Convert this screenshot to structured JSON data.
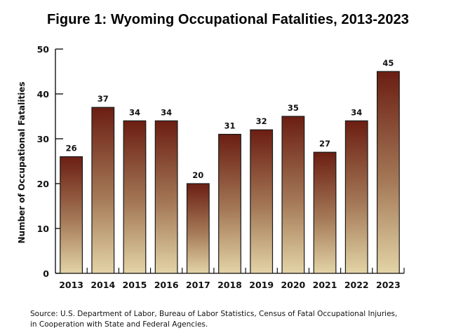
{
  "chart_data": {
    "type": "bar",
    "title": "Figure 1: Wyoming Occupational Fatalities, 2013-2023",
    "xlabel": "",
    "ylabel": "Number of Occupational Fatalities",
    "categories": [
      "2013",
      "2014",
      "2015",
      "2016",
      "2017",
      "2018",
      "2019",
      "2020",
      "2021",
      "2022",
      "2023"
    ],
    "values": [
      26,
      37,
      34,
      34,
      20,
      31,
      32,
      35,
      27,
      34,
      45
    ],
    "data_labels": [
      "26",
      "37",
      "34",
      "34",
      "20",
      "31",
      "32",
      "35",
      "27",
      "34",
      "45"
    ],
    "ylim": [
      0,
      50
    ],
    "yticks": [
      0,
      10,
      20,
      30,
      40,
      50
    ],
    "ytick_labels": [
      "0",
      "10",
      "20",
      "30",
      "40",
      "50"
    ],
    "grid": false,
    "legend": "none",
    "colors": {
      "bar_top": "#6b1e12",
      "bar_mid": "#a57a58",
      "bar_bottom": "#e3d4a6",
      "bar_outline": "#1a1a1a",
      "axis": "#000000"
    }
  },
  "source": {
    "line1": "Source: U.S. Department of Labor, Bureau of Labor Statistics, Census of Fatal Occupational Injuries,",
    "line2": "in Cooperation with State and Federal Agencies."
  }
}
